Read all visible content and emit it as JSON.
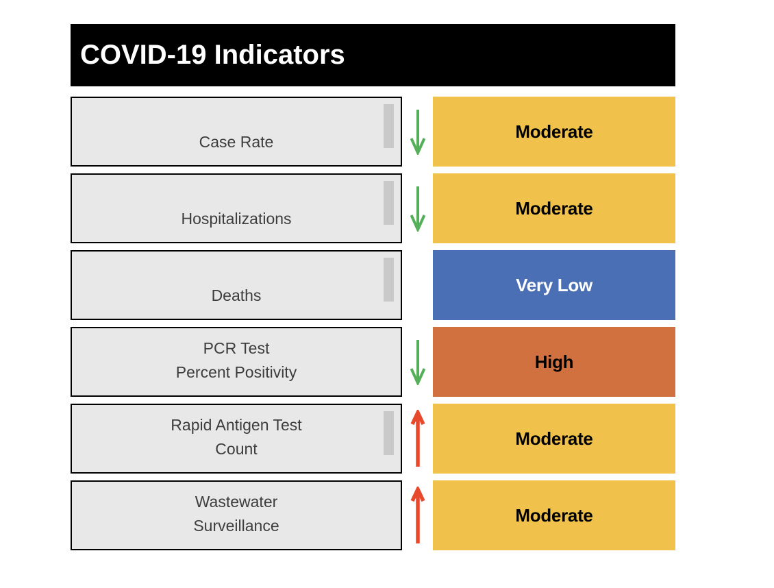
{
  "title": "COVID-19 Indicators",
  "colors": {
    "page-bg": "#ffffff",
    "header-bg": "#000000",
    "header-text": "#ffffff",
    "panel-bg": "#e8e8e8",
    "panel-border": "#000000",
    "panel-text": "#3d3d3d",
    "scrollbar-thumb": "#c9c9c9",
    "trend-down": "#55ae58",
    "trend-up": "#e8492d",
    "status-moderate-bg": "#f0c24b",
    "status-moderate-text": "#000000",
    "status-very-low-bg": "#4a6fb5",
    "status-very-low-text": "#ffffff",
    "status-high-bg": "#d1713f",
    "status-high-text": "#000000"
  },
  "rows": [
    {
      "label_lines": [
        "Case Rate"
      ],
      "trend": "down",
      "status": "Moderate",
      "level": "moderate",
      "scrollbar_thumb": true
    },
    {
      "label_lines": [
        "Hospitalizations"
      ],
      "trend": "down",
      "status": "Moderate",
      "level": "moderate",
      "scrollbar_thumb": true
    },
    {
      "label_lines": [
        "Deaths"
      ],
      "trend": "none",
      "status": "Very Low",
      "level": "very-low",
      "scrollbar_thumb": true
    },
    {
      "label_lines": [
        "PCR Test",
        "Percent Positivity"
      ],
      "trend": "down",
      "status": "High",
      "level": "high",
      "scrollbar_thumb": false
    },
    {
      "label_lines": [
        "Rapid Antigen Test",
        "Count"
      ],
      "trend": "up",
      "status": "Moderate",
      "level": "moderate",
      "scrollbar_thumb": true
    },
    {
      "label_lines": [
        "Wastewater",
        "Surveillance"
      ],
      "trend": "up",
      "status": "Moderate",
      "level": "moderate",
      "scrollbar_thumb": false
    }
  ]
}
